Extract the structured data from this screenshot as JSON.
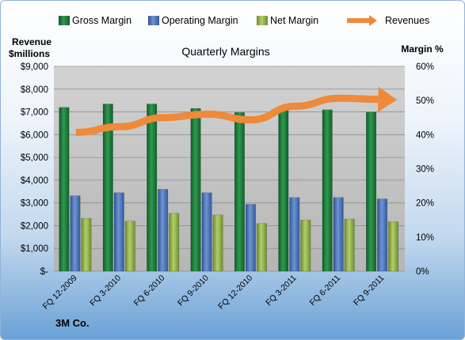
{
  "chart_data": {
    "type": "bar",
    "title": "Quarterly Margins",
    "company": "3M Co.",
    "ylabel_left_line1": "Revenue",
    "ylabel_left_line2": "$millions",
    "ylabel_right": "Margin %",
    "categories": [
      "FQ 12-2009",
      "FQ 3-2010",
      "FQ 6-2010",
      "FQ 9-2010",
      "FQ 12-2010",
      "FQ 3-2011",
      "FQ 6-2011",
      "FQ 9-2011"
    ],
    "ylim_left": [
      0,
      9000
    ],
    "ylim_right": [
      0,
      60
    ],
    "left_ticks": [
      "$-",
      "$1,000",
      "$2,000",
      "$3,000",
      "$4,000",
      "$5,000",
      "$6,000",
      "$7,000",
      "$8,000",
      "$9,000"
    ],
    "right_ticks": [
      "0%",
      "10%",
      "20%",
      "30%",
      "40%",
      "50%",
      "60%"
    ],
    "series": [
      {
        "name": "Gross Margin",
        "axis": "right",
        "color": "#1e7a3a",
        "values": [
          48,
          49,
          49,
          47.7,
          46.5,
          48,
          47.3,
          46.6
        ]
      },
      {
        "name": "Operating Margin",
        "axis": "right",
        "color": "#4a74b8",
        "values": [
          22.1,
          23,
          24,
          23,
          19.6,
          21.6,
          21.6,
          21.2
        ]
      },
      {
        "name": "Net Margin",
        "axis": "right",
        "color": "#8fb04a",
        "values": [
          15.5,
          14.7,
          17,
          16.5,
          14,
          15,
          15.3,
          14.5
        ]
      },
      {
        "name": "Revenues",
        "axis": "left",
        "color": "#ee8a3a",
        "type": "line",
        "values": [
          6100,
          6350,
          6750,
          6900,
          6650,
          7250,
          7600,
          7550
        ]
      }
    ],
    "legend_position": "top",
    "grid": true
  }
}
